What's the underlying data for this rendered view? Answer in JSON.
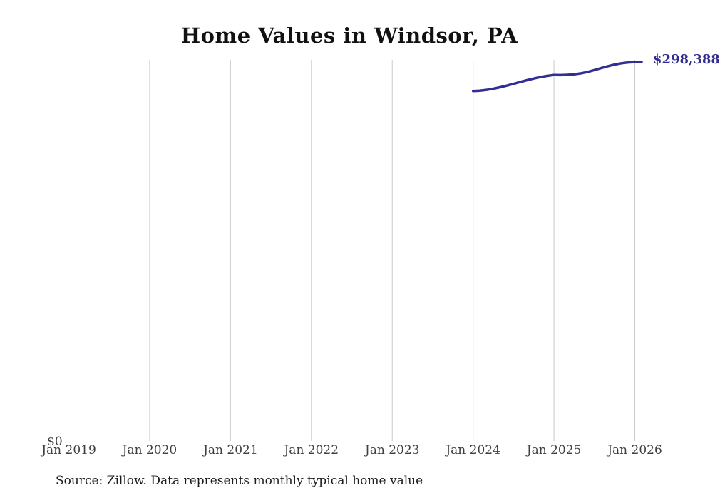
{
  "header": {
    "title": "Home Values in Windsor, PA"
  },
  "footer": {
    "source_note": "Source: Zillow. Data represents monthly typical home value"
  },
  "chart_data": {
    "type": "line",
    "title": "Home Values in Windsor, PA",
    "xlabel": "",
    "ylabel": "",
    "legend": "none",
    "grid": "vertical",
    "ylim": [
      0,
      300000
    ],
    "x_tick_labels": [
      "Jan 2019",
      "Jan 2020",
      "Jan 2021",
      "Jan 2022",
      "Jan 2023",
      "Jan 2024",
      "Jan 2025",
      "Jan 2026"
    ],
    "y_zero_label": "$0",
    "end_label": "$298,388",
    "series": [
      {
        "name": "Monthly typical home value",
        "x": [
          "2024-01",
          "2024-02",
          "2024-03",
          "2024-04",
          "2024-05",
          "2024-06",
          "2024-07",
          "2024-08",
          "2024-09",
          "2024-10",
          "2024-11",
          "2024-12",
          "2025-01",
          "2025-02",
          "2025-03",
          "2025-04",
          "2025-05",
          "2025-06",
          "2025-07",
          "2025-08",
          "2025-09",
          "2025-10",
          "2025-11",
          "2025-12",
          "2026-01",
          "2026-02"
        ],
        "values": [
          275500,
          275800,
          276400,
          277300,
          278400,
          279700,
          281100,
          282600,
          284000,
          285300,
          286500,
          287400,
          288100,
          288000,
          288200,
          288600,
          289400,
          290500,
          292000,
          293500,
          295000,
          296300,
          297300,
          298000,
          298250,
          298388
        ]
      }
    ],
    "colors": {
      "line": "#332e93",
      "end_label": "#312c8f",
      "gridline": "#cacaca",
      "axis_text": "#3f3f3f",
      "title_text": "#111111",
      "source_text": "#1c1c1c"
    }
  }
}
